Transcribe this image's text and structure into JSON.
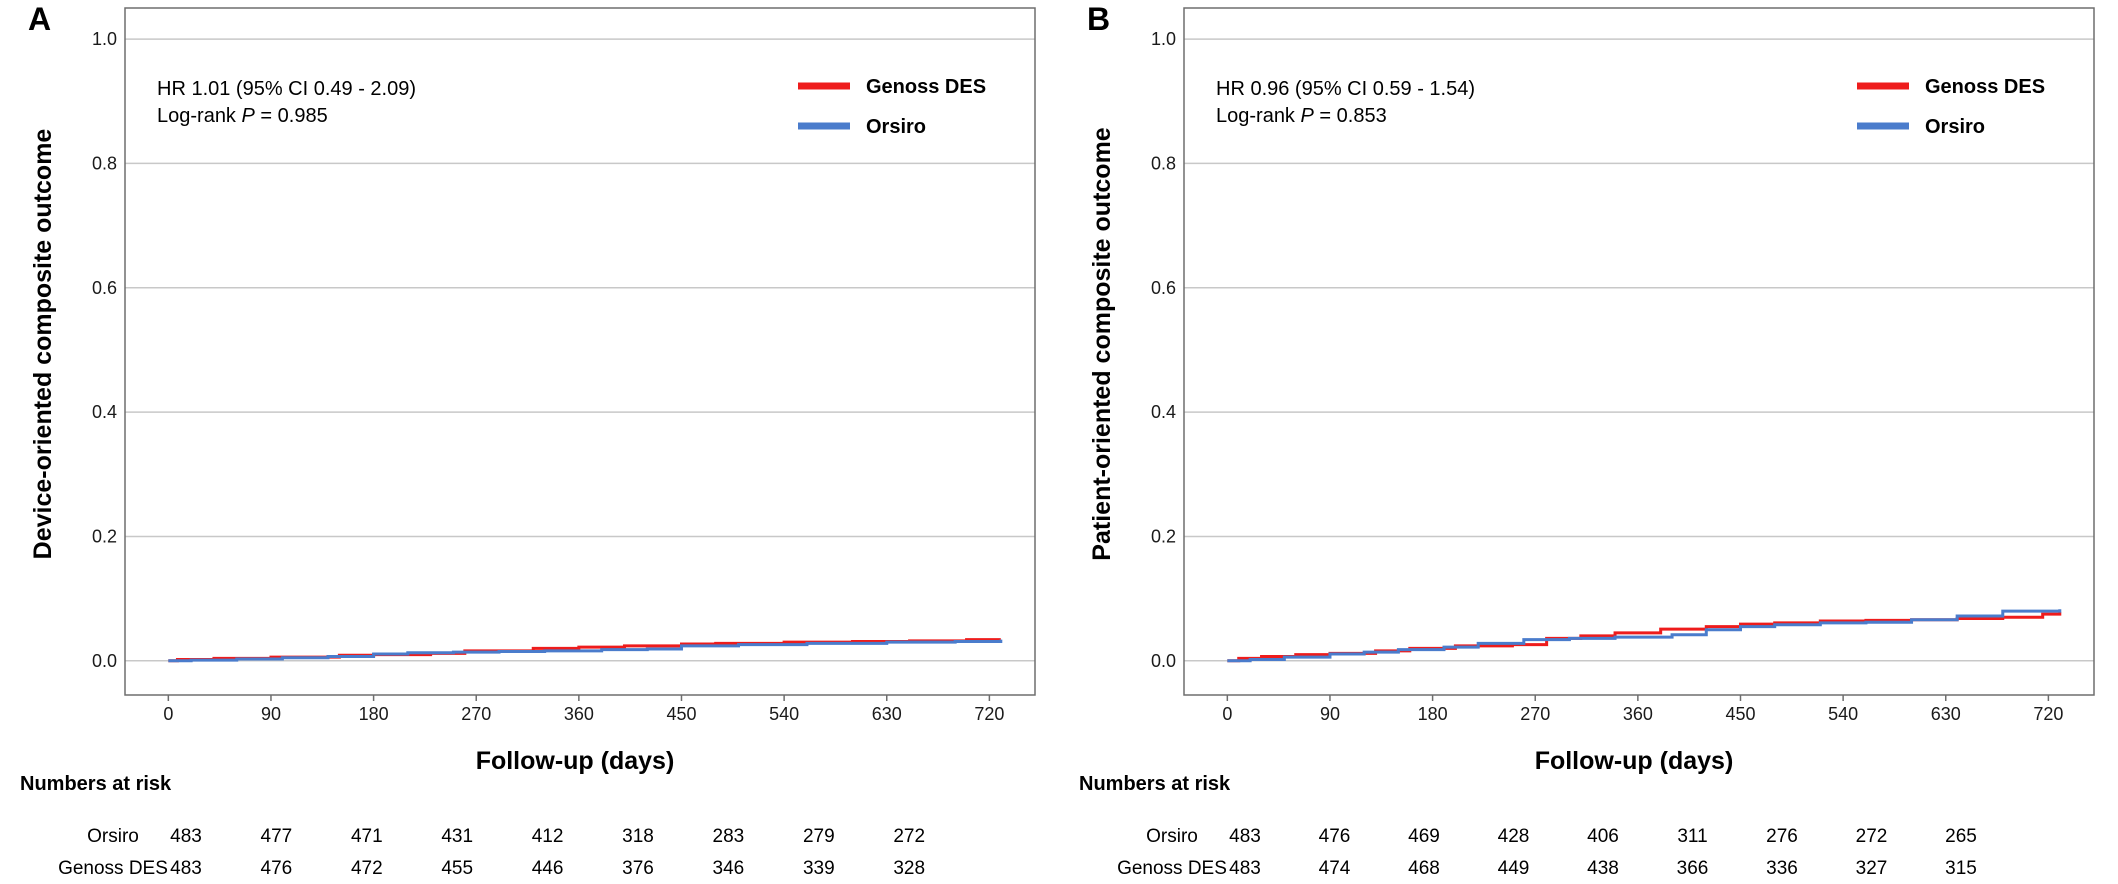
{
  "chart_data": [
    {
      "type": "line",
      "panel_label": "A",
      "xlabel": "Follow-up (days)",
      "ylabel": "Device-oriented composite outcome",
      "x_ticks": [
        0,
        90,
        180,
        270,
        360,
        450,
        540,
        630,
        720
      ],
      "y_ticks": [
        "0.0",
        "0.2",
        "0.4",
        "0.6",
        "0.8",
        "1.0"
      ],
      "xlim": [
        -38,
        760
      ],
      "ylim": [
        -0.055,
        1.05
      ],
      "grid": true,
      "legend_position": "top-right",
      "stats": {
        "hr_text": "HR 1.01 (95% CI 0.49 - 2.09)",
        "logrank_prefix": "Log-rank ",
        "logrank_p": "P",
        "logrank_value": " = 0.985"
      },
      "series": [
        {
          "name": "Genoss DES",
          "color": "#ee1c1c",
          "points": [
            [
              0,
              0
            ],
            [
              8,
              0.002
            ],
            [
              40,
              0.004
            ],
            [
              90,
              0.006
            ],
            [
              150,
              0.009
            ],
            [
              180,
              0.01
            ],
            [
              230,
              0.012
            ],
            [
              260,
              0.016
            ],
            [
              320,
              0.02
            ],
            [
              360,
              0.022
            ],
            [
              400,
              0.024
            ],
            [
              450,
              0.027
            ],
            [
              480,
              0.028
            ],
            [
              540,
              0.03
            ],
            [
              600,
              0.031
            ],
            [
              650,
              0.032
            ],
            [
              700,
              0.034
            ],
            [
              730,
              0.034
            ]
          ]
        },
        {
          "name": "Orsiro",
          "color": "#4a7ccc",
          "points": [
            [
              0,
              0
            ],
            [
              20,
              0.001
            ],
            [
              60,
              0.003
            ],
            [
              100,
              0.005
            ],
            [
              140,
              0.007
            ],
            [
              180,
              0.011
            ],
            [
              210,
              0.013
            ],
            [
              250,
              0.014
            ],
            [
              290,
              0.015
            ],
            [
              330,
              0.016
            ],
            [
              380,
              0.018
            ],
            [
              420,
              0.019
            ],
            [
              450,
              0.024
            ],
            [
              500,
              0.026
            ],
            [
              560,
              0.028
            ],
            [
              630,
              0.03
            ],
            [
              690,
              0.031
            ],
            [
              730,
              0.034
            ]
          ]
        }
      ],
      "risk_table": {
        "title": "Numbers at risk",
        "rows": [
          {
            "label": "Orsiro",
            "values": [
              "483",
              "477",
              "471",
              "431",
              "412",
              "318",
              "283",
              "279",
              "272"
            ]
          },
          {
            "label": "Genoss DES",
            "values": [
              "483",
              "476",
              "472",
              "455",
              "446",
              "376",
              "346",
              "339",
              "328"
            ]
          }
        ]
      }
    },
    {
      "type": "line",
      "panel_label": "B",
      "xlabel": "Follow-up (days)",
      "ylabel": "Patient-oriented composite outcome",
      "x_ticks": [
        0,
        90,
        180,
        270,
        360,
        450,
        540,
        630,
        720
      ],
      "y_ticks": [
        "0.0",
        "0.2",
        "0.4",
        "0.6",
        "0.8",
        "1.0"
      ],
      "xlim": [
        -38,
        760
      ],
      "ylim": [
        -0.055,
        1.05
      ],
      "grid": true,
      "legend_position": "top-right",
      "stats": {
        "hr_text": "HR 0.96 (95% CI 0.59 - 1.54)",
        "logrank_prefix": "Log-rank ",
        "logrank_p": "P",
        "logrank_value": " = 0.853"
      },
      "series": [
        {
          "name": "Genoss DES",
          "color": "#ee1c1c",
          "points": [
            [
              0,
              0
            ],
            [
              10,
              0.004
            ],
            [
              30,
              0.007
            ],
            [
              60,
              0.01
            ],
            [
              90,
              0.012
            ],
            [
              130,
              0.016
            ],
            [
              160,
              0.02
            ],
            [
              200,
              0.024
            ],
            [
              250,
              0.026
            ],
            [
              280,
              0.036
            ],
            [
              310,
              0.04
            ],
            [
              340,
              0.045
            ],
            [
              380,
              0.051
            ],
            [
              420,
              0.055
            ],
            [
              450,
              0.059
            ],
            [
              480,
              0.061
            ],
            [
              520,
              0.064
            ],
            [
              560,
              0.065
            ],
            [
              600,
              0.066
            ],
            [
              640,
              0.068
            ],
            [
              680,
              0.07
            ],
            [
              715,
              0.075
            ],
            [
              730,
              0.078
            ]
          ]
        },
        {
          "name": "Orsiro",
          "color": "#4a7ccc",
          "points": [
            [
              0,
              0
            ],
            [
              20,
              0.002
            ],
            [
              50,
              0.006
            ],
            [
              90,
              0.011
            ],
            [
              120,
              0.014
            ],
            [
              150,
              0.018
            ],
            [
              190,
              0.022
            ],
            [
              220,
              0.028
            ],
            [
              260,
              0.034
            ],
            [
              300,
              0.036
            ],
            [
              340,
              0.038
            ],
            [
              390,
              0.042
            ],
            [
              420,
              0.05
            ],
            [
              450,
              0.055
            ],
            [
              480,
              0.058
            ],
            [
              520,
              0.061
            ],
            [
              560,
              0.062
            ],
            [
              600,
              0.066
            ],
            [
              640,
              0.072
            ],
            [
              680,
              0.08
            ],
            [
              730,
              0.083
            ]
          ]
        }
      ],
      "risk_table": {
        "title": "Numbers at risk",
        "rows": [
          {
            "label": "Orsiro",
            "values": [
              "483",
              "476",
              "469",
              "428",
              "406",
              "311",
              "276",
              "272",
              "265"
            ]
          },
          {
            "label": "Genoss DES",
            "values": [
              "483",
              "474",
              "468",
              "449",
              "438",
              "366",
              "336",
              "327",
              "315"
            ]
          }
        ]
      }
    }
  ]
}
